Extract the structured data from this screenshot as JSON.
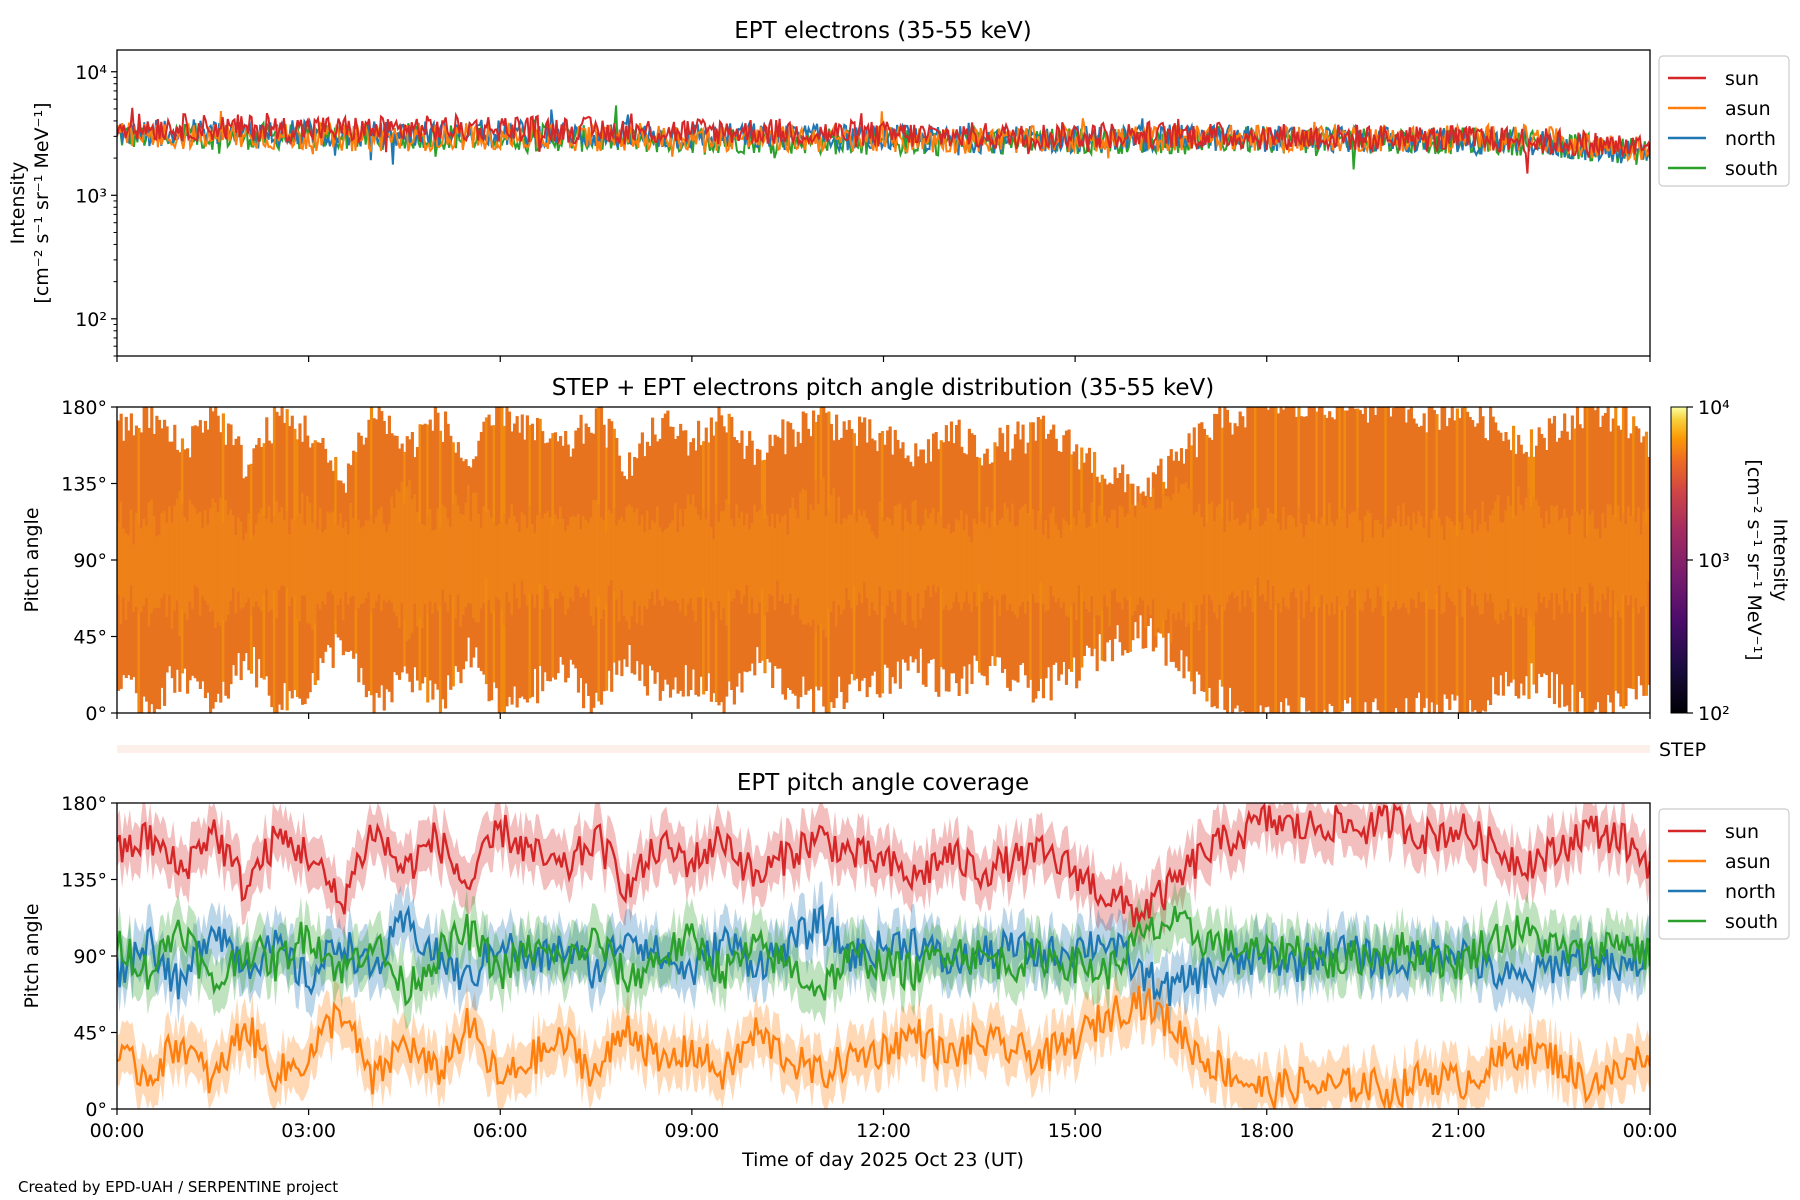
{
  "footer": "Created by EPD-UAH / SERPENTINE project",
  "xlabel": "Time of day 2025 Oct 23 (UT)",
  "x_ticks": [
    "00:00",
    "03:00",
    "06:00",
    "09:00",
    "12:00",
    "15:00",
    "18:00",
    "21:00",
    "00:00"
  ],
  "colors": {
    "sun": "#d62728",
    "asun": "#ff7f0e",
    "north": "#1f77b4",
    "south": "#2ca02c"
  },
  "chart_data": [
    {
      "type": "line",
      "title": "EPT electrons (35-55 keV)",
      "ylabel": "Intensity",
      "ylabel_units": "[cm⁻² s⁻¹ sr⁻¹ MeV⁻¹]",
      "yscale": "log",
      "ylim": [
        50,
        15000
      ],
      "y_ticks": [
        {
          "value": 100,
          "label": "10²"
        },
        {
          "value": 1000,
          "label": "10³"
        },
        {
          "value": 10000,
          "label": "10⁴"
        }
      ],
      "xlim_hours": [
        0,
        24
      ],
      "legend": [
        "sun",
        "asun",
        "north",
        "south"
      ],
      "legend_position": "outside-right",
      "series": [
        {
          "name": "sun",
          "x_hours": [
            0,
            2,
            4,
            6,
            8,
            10,
            12,
            14,
            16,
            18,
            20,
            22,
            24
          ],
          "values": [
            3600,
            3500,
            3400,
            3500,
            3300,
            3300,
            3100,
            3000,
            3100,
            3000,
            2900,
            2800,
            2400
          ]
        },
        {
          "name": "asun",
          "x_hours": [
            0,
            2,
            4,
            6,
            8,
            10,
            12,
            14,
            16,
            18,
            20,
            22,
            24
          ],
          "values": [
            3000,
            3000,
            2900,
            3000,
            2900,
            2900,
            2800,
            2800,
            2900,
            2900,
            2900,
            2900,
            2300
          ]
        },
        {
          "name": "north",
          "x_hours": [
            0,
            2,
            4,
            6,
            8,
            10,
            12,
            14,
            16,
            18,
            20,
            22,
            24
          ],
          "values": [
            3200,
            3200,
            3100,
            3200,
            3000,
            3000,
            2900,
            2800,
            2900,
            2900,
            2800,
            2700,
            2200
          ]
        },
        {
          "name": "south",
          "x_hours": [
            0,
            2,
            4,
            6,
            8,
            10,
            12,
            14,
            16,
            18,
            20,
            22,
            24
          ],
          "values": [
            3000,
            3000,
            3000,
            3000,
            2800,
            2800,
            2700,
            2700,
            2800,
            2800,
            2800,
            2700,
            2200
          ]
        }
      ]
    },
    {
      "type": "heatmap",
      "title": "STEP + EPT electrons pitch angle distribution (35-55 keV)",
      "ylabel": "Pitch angle",
      "ylim": [
        0,
        180
      ],
      "y_ticks": [
        "0°",
        "45°",
        "90°",
        "135°",
        "180°"
      ],
      "colorbar": {
        "label": "Intensity",
        "label_units": "[cm⁻² s⁻¹ sr⁻¹ MeV⁻¹]",
        "scale": "log",
        "range": [
          100,
          10000
        ],
        "ticks": [
          "10²",
          "10³",
          "10⁴"
        ]
      },
      "typical_value": 3000,
      "coverage_note": "filled between sun and asun pitch angles"
    },
    {
      "type": "strip",
      "label": "STEP"
    },
    {
      "type": "line",
      "title": "EPT pitch angle coverage",
      "ylabel": "Pitch angle",
      "ylim": [
        0,
        180
      ],
      "y_ticks": [
        "0°",
        "45°",
        "90°",
        "135°",
        "180°"
      ],
      "xlim_hours": [
        0,
        24
      ],
      "legend": [
        "sun",
        "asun",
        "north",
        "south"
      ],
      "legend_position": "outside-right",
      "band_halfwidth_deg": 15,
      "series": [
        {
          "name": "sun",
          "x_hours": [
            0,
            0.5,
            1,
            1.5,
            2,
            2.5,
            3,
            3.5,
            4,
            4.5,
            5,
            5.5,
            6,
            6.5,
            7,
            7.5,
            8,
            8.5,
            9,
            9.5,
            10,
            10.5,
            11,
            11.5,
            12,
            12.5,
            13,
            13.5,
            14,
            14.5,
            15,
            15.5,
            16,
            16.5,
            17,
            17.5,
            18,
            18.5,
            19,
            19.5,
            20,
            20.5,
            21,
            21.5,
            22,
            22.5,
            23,
            23.5,
            24
          ],
          "values": [
            150,
            160,
            140,
            165,
            130,
            160,
            150,
            120,
            165,
            140,
            160,
            130,
            165,
            150,
            140,
            160,
            130,
            155,
            145,
            160,
            135,
            150,
            160,
            150,
            145,
            135,
            150,
            140,
            145,
            150,
            140,
            125,
            115,
            130,
            150,
            160,
            170,
            165,
            168,
            165,
            170,
            160,
            165,
            155,
            145,
            150,
            165,
            160,
            145
          ]
        },
        {
          "name": "asun",
          "x_hours": [
            0,
            0.5,
            1,
            1.5,
            2,
            2.5,
            3,
            3.5,
            4,
            4.5,
            5,
            5.5,
            6,
            6.5,
            7,
            7.5,
            8,
            8.5,
            9,
            9.5,
            10,
            10.5,
            11,
            11.5,
            12,
            12.5,
            13,
            13.5,
            14,
            14.5,
            15,
            15.5,
            16,
            16.5,
            17,
            17.5,
            18,
            18.5,
            19,
            19.5,
            20,
            20.5,
            21,
            21.5,
            22,
            22.5,
            23,
            23.5,
            24
          ],
          "values": [
            30,
            20,
            40,
            15,
            50,
            20,
            30,
            60,
            15,
            40,
            20,
            50,
            15,
            30,
            40,
            20,
            50,
            25,
            35,
            20,
            45,
            30,
            20,
            30,
            35,
            45,
            30,
            40,
            35,
            30,
            40,
            55,
            65,
            50,
            30,
            20,
            10,
            15,
            12,
            15,
            10,
            20,
            15,
            25,
            35,
            30,
            15,
            20,
            35
          ]
        },
        {
          "name": "north",
          "x_hours": [
            0,
            0.5,
            1,
            1.5,
            2,
            2.5,
            3,
            3.5,
            4,
            4.5,
            5,
            5.5,
            6,
            6.5,
            7,
            7.5,
            8,
            8.5,
            9,
            9.5,
            10,
            10.5,
            11,
            11.5,
            12,
            12.5,
            13,
            13.5,
            14,
            14.5,
            15,
            15.5,
            16,
            16.5,
            17,
            17.5,
            18,
            18.5,
            19,
            19.5,
            20,
            20.5,
            21,
            21.5,
            22,
            22.5,
            23,
            23.5,
            24
          ],
          "values": [
            80,
            100,
            70,
            110,
            85,
            95,
            75,
            100,
            80,
            110,
            90,
            75,
            100,
            85,
            95,
            80,
            105,
            90,
            80,
            100,
            85,
            95,
            110,
            90,
            95,
            100,
            85,
            90,
            95,
            90,
            95,
            100,
            80,
            70,
            80,
            85,
            90,
            85,
            95,
            90,
            85,
            90,
            95,
            80,
            75,
            85,
            90,
            80,
            90
          ]
        },
        {
          "name": "south",
          "x_hours": [
            0,
            0.5,
            1,
            1.5,
            2,
            2.5,
            3,
            3.5,
            4,
            4.5,
            5,
            5.5,
            6,
            6.5,
            7,
            7.5,
            8,
            8.5,
            9,
            9.5,
            10,
            10.5,
            11,
            11.5,
            12,
            12.5,
            13,
            13.5,
            14,
            14.5,
            15,
            15.5,
            16,
            16.5,
            17,
            17.5,
            18,
            18.5,
            19,
            19.5,
            20,
            20.5,
            21,
            21.5,
            22,
            22.5,
            23,
            23.5,
            24
          ],
          "values": [
            100,
            80,
            110,
            70,
            95,
            85,
            105,
            80,
            100,
            70,
            90,
            105,
            80,
            95,
            85,
            100,
            75,
            90,
            100,
            80,
            95,
            85,
            70,
            90,
            85,
            80,
            95,
            90,
            85,
            90,
            85,
            80,
            100,
            110,
            100,
            95,
            90,
            95,
            85,
            90,
            95,
            90,
            85,
            100,
            105,
            95,
            90,
            100,
            90
          ]
        }
      ]
    }
  ]
}
